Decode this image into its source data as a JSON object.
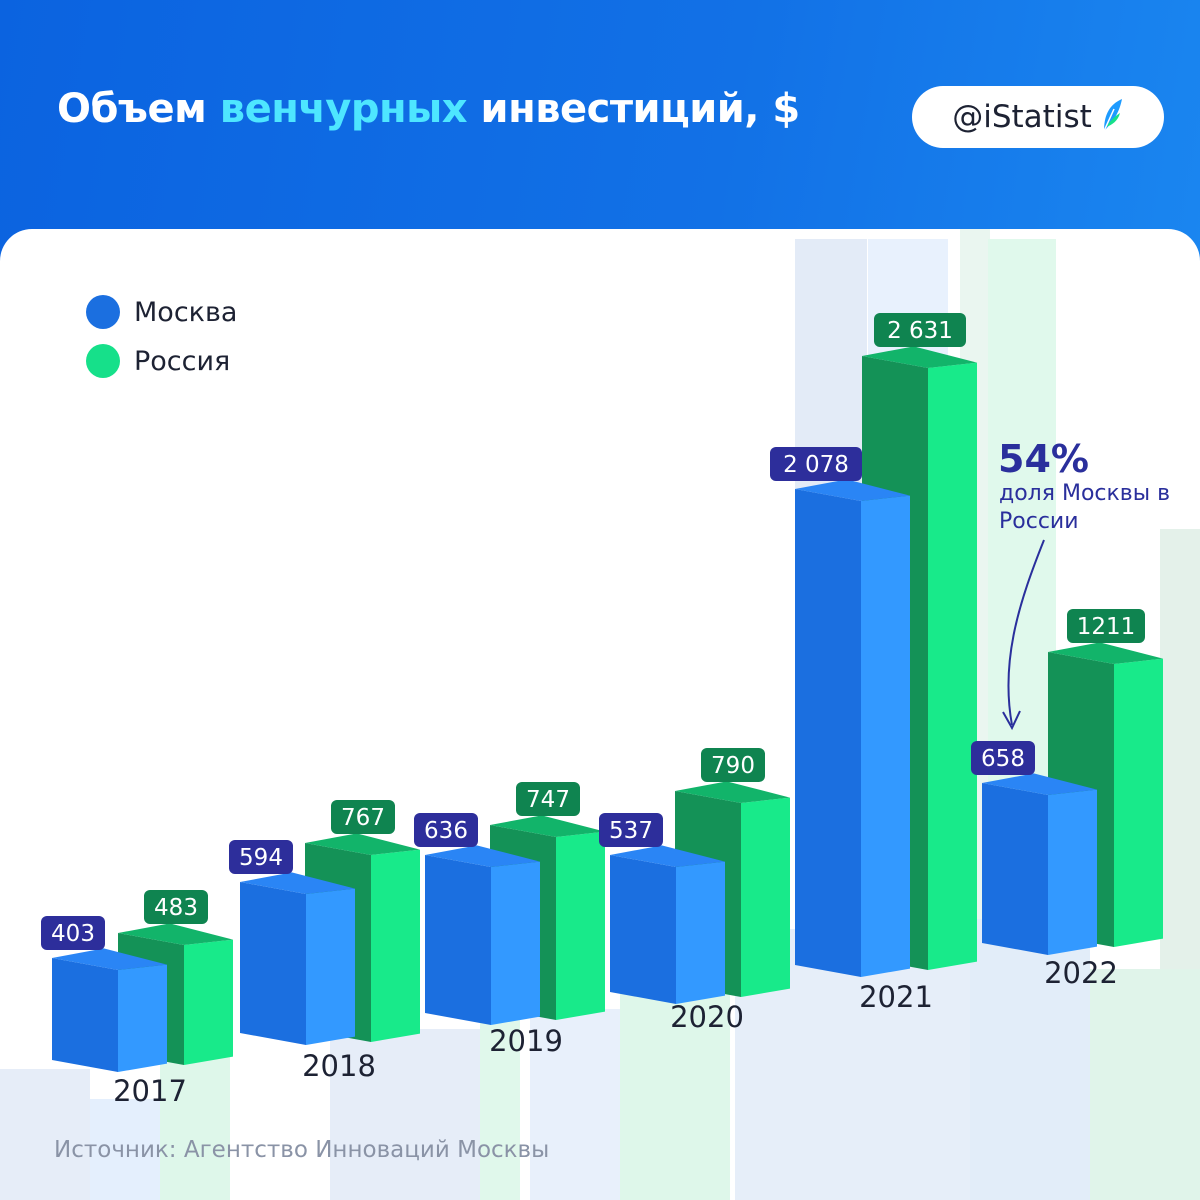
{
  "header": {
    "title_part1": "Объем ",
    "title_highlight": "венчурных",
    "title_part2": " инвестиций, $",
    "badge": "@iStatist",
    "badge_icon": "feather-logo-icon"
  },
  "legend": [
    {
      "name": "Москва",
      "color": "#1b6fe0"
    },
    {
      "name": "Россия",
      "color": "#16e08a"
    }
  ],
  "annotation": {
    "percent": "54%",
    "text": "доля Москвы в России"
  },
  "source": "Источник: Агентство Инноваций Москвы",
  "colors": {
    "moscow_front": "#1b6fe0",
    "moscow_side": "#3399ff",
    "moscow_top": "#2a85f5",
    "moscow_label": "#2d2e9b",
    "russia_front": "#149257",
    "russia_side": "#18ea8a",
    "russia_top": "#12b46a",
    "russia_label": "#0f8450",
    "header_bg": "#0b63e0"
  },
  "chart_data": {
    "type": "bar",
    "categories": [
      "2017",
      "2018",
      "2019",
      "2020",
      "2021",
      "2022"
    ],
    "series": [
      {
        "name": "Москва",
        "values": [
          403,
          594,
          636,
          537,
          2078,
          658
        ],
        "labels": [
          "403",
          "594",
          "636",
          "537",
          "2 078",
          "658"
        ]
      },
      {
        "name": "Россия",
        "values": [
          483,
          767,
          747,
          790,
          2631,
          1211
        ],
        "labels": [
          "483",
          "767",
          "747",
          "790",
          "2 631",
          "1211"
        ]
      }
    ]
  }
}
